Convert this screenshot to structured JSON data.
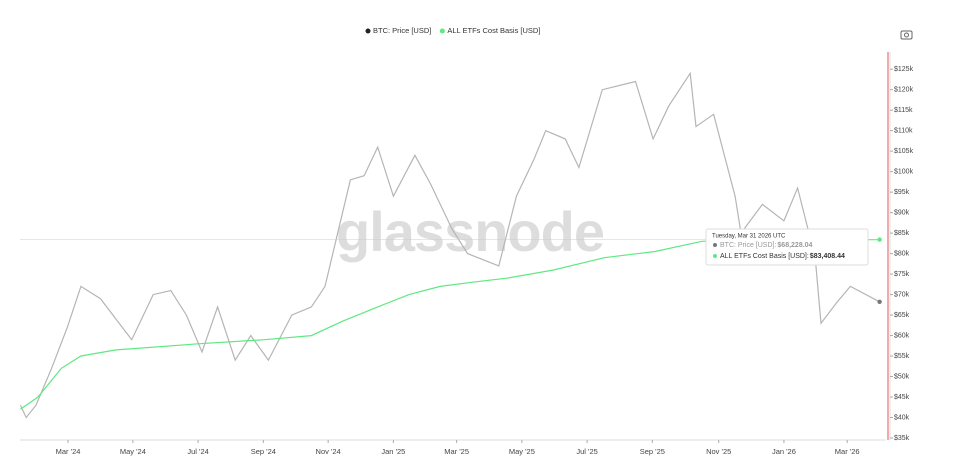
{
  "chart_data": {
    "type": "line",
    "watermark": "glassnode",
    "xlim": [
      2024.044,
      2026.246
    ],
    "xticks": [
      {
        "value": 2024.167,
        "label": "Mar '24"
      },
      {
        "value": 2024.333,
        "label": "May '24"
      },
      {
        "value": 2024.5,
        "label": "Jul '24"
      },
      {
        "value": 2024.667,
        "label": "Sep '24"
      },
      {
        "value": 2024.833,
        "label": "Nov '24"
      },
      {
        "value": 2025.0,
        "label": "Jan '25"
      },
      {
        "value": 2025.162,
        "label": "Mar '25"
      },
      {
        "value": 2025.329,
        "label": "May '25"
      },
      {
        "value": 2025.496,
        "label": "Jul '25"
      },
      {
        "value": 2025.663,
        "label": "Sep '25"
      },
      {
        "value": 2025.833,
        "label": "Nov '25"
      },
      {
        "value": 2026.0,
        "label": "Jan '26"
      },
      {
        "value": 2026.162,
        "label": "Mar '26"
      }
    ],
    "ylim": [
      35000,
      127000
    ],
    "yticks": [
      {
        "value": 35000,
        "label": "$35k"
      },
      {
        "value": 40000,
        "label": "$40k"
      },
      {
        "value": 45000,
        "label": "$45k"
      },
      {
        "value": 50000,
        "label": "$50k"
      },
      {
        "value": 55000,
        "label": "$55k"
      },
      {
        "value": 60000,
        "label": "$60k"
      },
      {
        "value": 65000,
        "label": "$65k"
      },
      {
        "value": 70000,
        "label": "$70k"
      },
      {
        "value": 75000,
        "label": "$75k"
      },
      {
        "value": 80000,
        "label": "$80k"
      },
      {
        "value": 85000,
        "label": "$85k"
      },
      {
        "value": 90000,
        "label": "$90k"
      },
      {
        "value": 95000,
        "label": "$95k"
      },
      {
        "value": 100000,
        "label": "$100k"
      },
      {
        "value": 105000,
        "label": "$105k"
      },
      {
        "value": 110000,
        "label": "$110k"
      },
      {
        "value": 115000,
        "label": "$115k"
      },
      {
        "value": 120000,
        "label": "$120k"
      },
      {
        "value": 125000,
        "label": "$125k"
      }
    ],
    "series": [
      {
        "name": "BTC: Price [USD]",
        "color": "#b5b5b5",
        "x": [
          2024.045,
          2024.06,
          2024.085,
          2024.125,
          2024.165,
          2024.2,
          2024.25,
          2024.29,
          2024.33,
          2024.385,
          2024.43,
          2024.47,
          2024.51,
          2024.55,
          2024.595,
          2024.635,
          2024.68,
          2024.74,
          2024.79,
          2024.825,
          2024.865,
          2024.89,
          2024.925,
          2024.96,
          2025.0,
          2025.055,
          2025.095,
          2025.15,
          2025.19,
          2025.27,
          2025.315,
          2025.36,
          2025.39,
          2025.44,
          2025.475,
          2025.535,
          2025.62,
          2025.665,
          2025.705,
          2025.76,
          2025.775,
          2025.82,
          2025.875,
          2025.89,
          2025.945,
          2026.0,
          2026.035,
          2026.08,
          2026.095,
          2026.135,
          2026.17,
          2026.245
        ],
        "values": [
          43000,
          40000,
          43000,
          52000,
          62000,
          72000,
          69000,
          64000,
          59000,
          70000,
          71000,
          65000,
          56000,
          67000,
          54000,
          60000,
          54000,
          65000,
          67000,
          72000,
          88000,
          98000,
          99000,
          106000,
          94000,
          104000,
          97000,
          86000,
          80000,
          77000,
          94000,
          103000,
          110000,
          108000,
          101000,
          120000,
          122000,
          108000,
          116000,
          124000,
          111000,
          114000,
          94000,
          85000,
          92000,
          88000,
          96000,
          79000,
          63000,
          68000,
          72000,
          68228.04
        ]
      },
      {
        "name": "ALL ETFs Cost Basis [USD]",
        "color": "#5fe882",
        "x": [
          2024.045,
          2024.09,
          2024.15,
          2024.2,
          2024.29,
          2024.5,
          2024.67,
          2024.79,
          2024.87,
          2024.96,
          2025.04,
          2025.12,
          2025.2,
          2025.29,
          2025.41,
          2025.54,
          2025.67,
          2025.79,
          2025.92,
          2026.245
        ],
        "values": [
          42000,
          45000,
          52000,
          55000,
          56500,
          58000,
          59000,
          60000,
          63500,
          67000,
          70000,
          72000,
          73000,
          74000,
          76000,
          79000,
          80500,
          83000,
          83400,
          83408.44
        ]
      }
    ],
    "tooltip": {
      "date": "Tuesday, Mar 31 2026 UTC",
      "rows": [
        {
          "label": "BTC: Price [USD]: ",
          "value": "$68,228.04"
        },
        {
          "label": "ALL ETFs Cost Basis [USD]: ",
          "value": "$83,408.44"
        }
      ]
    }
  }
}
